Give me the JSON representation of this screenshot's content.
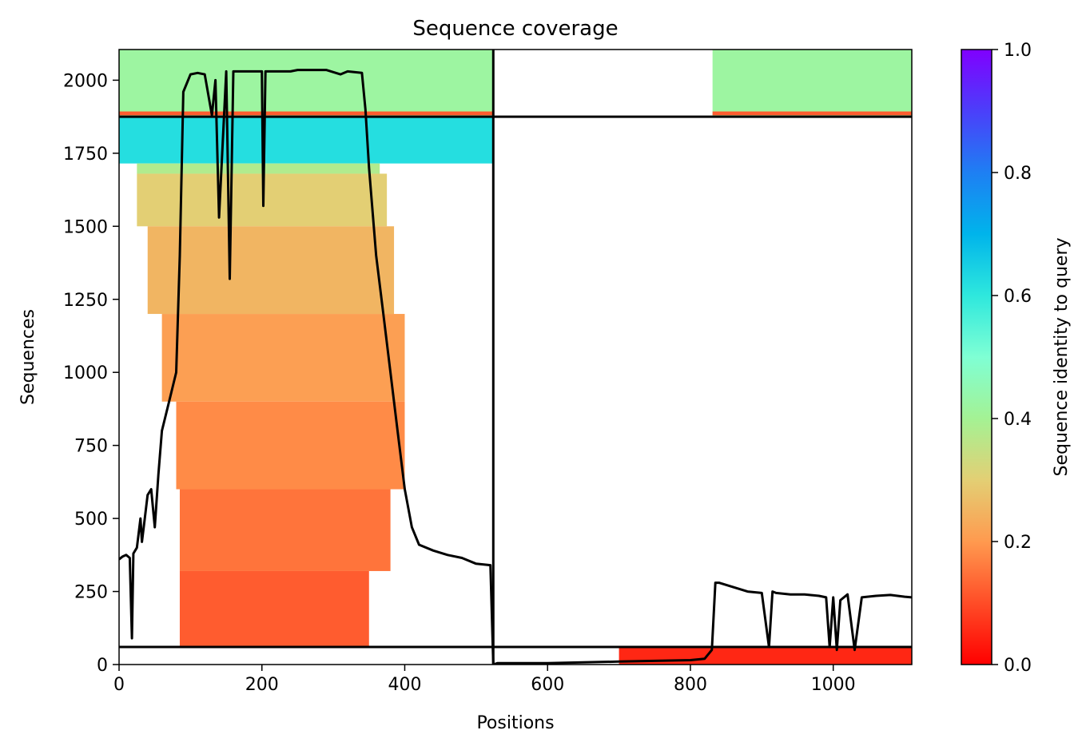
{
  "chart_data": {
    "type": "heatmap",
    "title": "Sequence coverage",
    "xlabel": "Positions",
    "ylabel": "Sequences",
    "xlim": [
      0,
      1110
    ],
    "ylim": [
      0,
      2105
    ],
    "xticks": [
      0,
      200,
      400,
      600,
      800,
      1000
    ],
    "yticks": [
      0,
      250,
      500,
      750,
      1000,
      1250,
      1500,
      1750,
      2000
    ],
    "colorbar": {
      "label": "Sequence identity to query",
      "range": [
        0,
        1
      ],
      "ticks": [
        0.0,
        0.2,
        0.4,
        0.6,
        0.8,
        1.0
      ],
      "colormap": "rainbow_r"
    },
    "boundaries": {
      "chain_break_x": 524,
      "horizontal_lines_y": [
        60,
        1875
      ]
    },
    "coverage_blocks": [
      {
        "x": [
          0,
          524
        ],
        "y": [
          1875,
          2105
        ],
        "identity": 0.42
      },
      {
        "x": [
          0,
          524
        ],
        "y": [
          1715,
          1875
        ],
        "identity": 0.62
      },
      {
        "x": [
          0,
          524
        ],
        "y": [
          1880,
          1893
        ],
        "identity": 0.12
      },
      {
        "x": [
          25,
          365
        ],
        "y": [
          1680,
          1715
        ],
        "identity": 0.38
      },
      {
        "x": [
          25,
          375
        ],
        "y": [
          1500,
          1680
        ],
        "identity": 0.3
      },
      {
        "x": [
          40,
          385
        ],
        "y": [
          1200,
          1500
        ],
        "identity": 0.25
      },
      {
        "x": [
          60,
          400
        ],
        "y": [
          900,
          1200
        ],
        "identity": 0.21
      },
      {
        "x": [
          80,
          400
        ],
        "y": [
          600,
          900
        ],
        "identity": 0.18
      },
      {
        "x": [
          85,
          380
        ],
        "y": [
          320,
          600
        ],
        "identity": 0.15
      },
      {
        "x": [
          85,
          350
        ],
        "y": [
          60,
          320
        ],
        "identity": 0.12
      },
      {
        "x": [
          831,
          1110
        ],
        "y": [
          1875,
          2105
        ],
        "identity": 0.42
      },
      {
        "x": [
          831,
          1110
        ],
        "y": [
          1880,
          1893
        ],
        "identity": 0.12
      },
      {
        "x": [
          831,
          930
        ],
        "y": [
          0,
          60
        ],
        "identity": 0.02
      },
      {
        "x": [
          700,
          1110
        ],
        "y": [
          0,
          60
        ],
        "identity": 0.05
      }
    ],
    "coverage_line": {
      "x": [
        0,
        5,
        10,
        15,
        18,
        20,
        25,
        30,
        32,
        35,
        40,
        45,
        50,
        55,
        60,
        70,
        80,
        85,
        90,
        100,
        110,
        120,
        130,
        135,
        140,
        150,
        155,
        160,
        170,
        180,
        190,
        200,
        202,
        205,
        210,
        240,
        250,
        270,
        290,
        310,
        320,
        340,
        345,
        350,
        360,
        370,
        380,
        390,
        400,
        410,
        420,
        440,
        460,
        480,
        500,
        520,
        524,
        530,
        600,
        700,
        800,
        820,
        830,
        835,
        840,
        860,
        880,
        900,
        910,
        915,
        920,
        940,
        960,
        980,
        990,
        995,
        1000,
        1005,
        1010,
        1020,
        1030,
        1040,
        1060,
        1080,
        1100,
        1110
      ],
      "y": [
        360,
        370,
        375,
        365,
        90,
        380,
        400,
        500,
        420,
        480,
        580,
        600,
        470,
        650,
        800,
        900,
        1000,
        1400,
        1960,
        2020,
        2025,
        2020,
        1880,
        2000,
        1530,
        2030,
        1320,
        2030,
        2030,
        2030,
        2030,
        2030,
        1570,
        2030,
        2030,
        2030,
        2035,
        2035,
        2035,
        2020,
        2030,
        2025,
        1900,
        1700,
        1400,
        1200,
        1000,
        800,
        600,
        470,
        410,
        390,
        375,
        365,
        345,
        340,
        0,
        5,
        5,
        10,
        15,
        20,
        50,
        280,
        280,
        265,
        250,
        245,
        60,
        250,
        245,
        240,
        240,
        235,
        230,
        60,
        230,
        50,
        220,
        240,
        50,
        230,
        235,
        238,
        232,
        230
      ]
    }
  }
}
